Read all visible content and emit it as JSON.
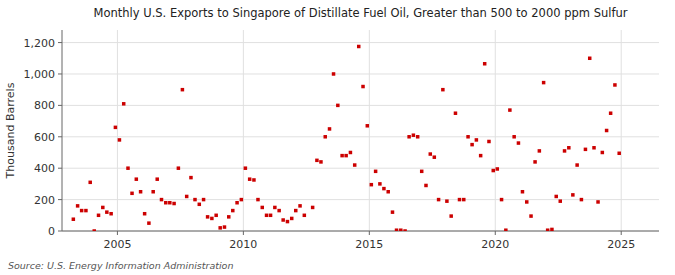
{
  "chart_data": {
    "type": "scatter",
    "title": "Monthly U.S. Exports to Singapore of Distillate Fuel Oil, Greater than 500 to 2000 ppm Sulfur",
    "ylabel": "Thousand Barrels",
    "source": "Source: U.S. Energy Information Administration",
    "color": "#cc0000",
    "marker": "square",
    "grid": true,
    "xlim": [
      2002.8,
      2026.5
    ],
    "ylim": [
      0,
      1280
    ],
    "xticks": [
      2005,
      2010,
      2015,
      2020,
      2025
    ],
    "yticks": [
      0,
      200,
      400,
      600,
      800,
      {
        "value": 1000,
        "label": "1,000"
      },
      {
        "value": 1200,
        "label": "1,200"
      }
    ],
    "x": [
      2003.25,
      2003.42,
      2003.58,
      2003.75,
      2003.92,
      2004.08,
      2004.25,
      2004.42,
      2004.58,
      2004.75,
      2004.92,
      2005.08,
      2005.25,
      2005.42,
      2005.58,
      2005.75,
      2005.92,
      2006.08,
      2006.25,
      2006.42,
      2006.58,
      2006.75,
      2006.92,
      2007.08,
      2007.25,
      2007.42,
      2007.58,
      2007.75,
      2007.92,
      2008.08,
      2008.25,
      2008.42,
      2008.58,
      2008.75,
      2008.92,
      2009.08,
      2009.25,
      2009.42,
      2009.58,
      2009.75,
      2009.92,
      2010.08,
      2010.25,
      2010.42,
      2010.58,
      2010.75,
      2010.92,
      2011.08,
      2011.25,
      2011.42,
      2011.58,
      2011.75,
      2011.92,
      2012.08,
      2012.25,
      2012.42,
      2012.75,
      2012.92,
      2013.08,
      2013.25,
      2013.42,
      2013.58,
      2013.75,
      2013.92,
      2014.08,
      2014.25,
      2014.42,
      2014.58,
      2014.75,
      2014.92,
      2015.08,
      2015.25,
      2015.42,
      2015.58,
      2015.75,
      2015.92,
      2016.08,
      2016.25,
      2016.42,
      2016.58,
      2016.75,
      2016.92,
      2017.08,
      2017.25,
      2017.42,
      2017.58,
      2017.75,
      2017.92,
      2018.08,
      2018.25,
      2018.42,
      2018.58,
      2018.75,
      2018.92,
      2019.08,
      2019.25,
      2019.42,
      2019.58,
      2019.75,
      2019.92,
      2020.08,
      2020.25,
      2020.42,
      2020.58,
      2020.75,
      2020.92,
      2021.08,
      2021.25,
      2021.42,
      2021.58,
      2021.75,
      2021.92,
      2022.08,
      2022.25,
      2022.42,
      2022.58,
      2022.75,
      2022.92,
      2023.08,
      2023.25,
      2023.42,
      2023.58,
      2023.75,
      2023.92,
      2024.08,
      2024.25,
      2024.42,
      2024.58,
      2024.75,
      2024.92
    ],
    "values": [
      75,
      160,
      130,
      130,
      310,
      0,
      100,
      150,
      120,
      110,
      660,
      580,
      810,
      400,
      240,
      330,
      250,
      110,
      50,
      250,
      330,
      200,
      180,
      180,
      175,
      400,
      900,
      220,
      340,
      200,
      170,
      200,
      90,
      80,
      100,
      20,
      25,
      90,
      130,
      180,
      200,
      400,
      330,
      325,
      200,
      150,
      100,
      100,
      150,
      130,
      70,
      60,
      80,
      130,
      160,
      100,
      150,
      450,
      440,
      600,
      650,
      1000,
      800,
      480,
      480,
      500,
      420,
      1175,
      920,
      670,
      295,
      380,
      300,
      270,
      250,
      120,
      5,
      5,
      0,
      600,
      610,
      600,
      380,
      290,
      490,
      470,
      200,
      900,
      190,
      95,
      750,
      200,
      200,
      600,
      550,
      580,
      480,
      1065,
      570,
      385,
      395,
      200,
      5,
      770,
      600,
      560,
      250,
      185,
      95,
      440,
      510,
      945,
      5,
      10,
      220,
      190,
      510,
      530,
      230,
      420,
      200,
      520,
      1100,
      530,
      185,
      500,
      640,
      750,
      930,
      495
    ]
  }
}
